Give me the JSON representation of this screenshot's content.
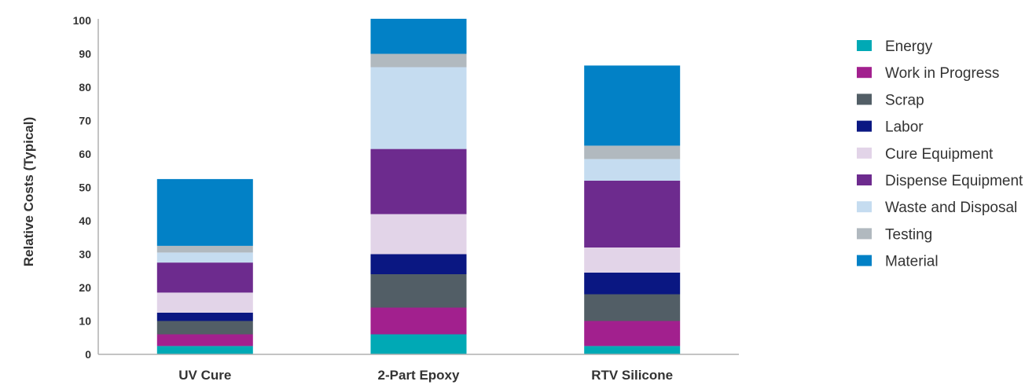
{
  "chart_data": {
    "type": "bar",
    "stacked": true,
    "title": "",
    "xlabel": "",
    "ylabel": "Relative Costs (Typical)",
    "ylim": [
      0,
      100
    ],
    "yticks": [
      0,
      10,
      20,
      30,
      40,
      50,
      60,
      70,
      80,
      90,
      100
    ],
    "grid": false,
    "legend_position": "right",
    "categories": [
      "UV Cure",
      "2-Part Epoxy",
      "RTV Silicone"
    ],
    "series": [
      {
        "name": "Energy",
        "color": "#00a9b5",
        "values": [
          2.5,
          6,
          2.5
        ]
      },
      {
        "name": "Work in Progress",
        "color": "#a2208e",
        "values": [
          3.5,
          8,
          7.5
        ]
      },
      {
        "name": "Scrap",
        "color": "#525e66",
        "values": [
          4,
          10,
          8
        ]
      },
      {
        "name": "Labor",
        "color": "#0a1782",
        "values": [
          2.5,
          6,
          6.5
        ]
      },
      {
        "name": "Cure Equipment",
        "color": "#e2d4e8",
        "values": [
          6,
          12,
          7.5
        ]
      },
      {
        "name": "Dispense Equipment",
        "color": "#6d2b8e",
        "values": [
          9,
          19.5,
          20
        ]
      },
      {
        "name": "Waste and Disposal",
        "color": "#c5dcf0",
        "values": [
          3,
          24.5,
          6.5
        ]
      },
      {
        "name": "Testing",
        "color": "#b1b9bf",
        "values": [
          2,
          4,
          4
        ]
      },
      {
        "name": "Material",
        "color": "#0281c6",
        "values": [
          20,
          10.5,
          24
        ]
      }
    ]
  }
}
